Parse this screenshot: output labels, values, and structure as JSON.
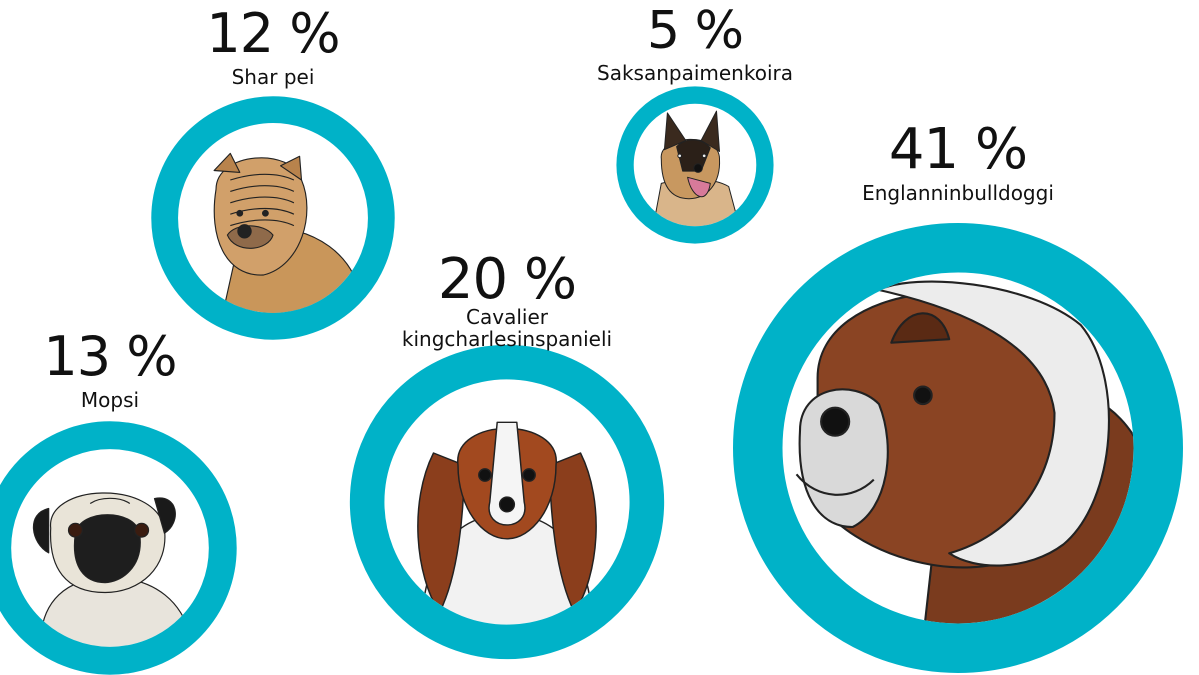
{
  "chart_data": {
    "type": "bubble",
    "unit": "%",
    "ring_color": "#00b2c8",
    "items": [
      {
        "value": 12,
        "label": "12 %",
        "name_lines": [
          "Shar pei"
        ],
        "breed": "shar-pei"
      },
      {
        "value": 5,
        "label": "5 %",
        "name_lines": [
          "Saksanpaimenkoira"
        ],
        "breed": "german-shepherd"
      },
      {
        "value": 41,
        "label": "41 %",
        "name_lines": [
          "Englanninbulldoggi"
        ],
        "breed": "english-bulldog"
      },
      {
        "value": 20,
        "label": "20 %",
        "name_lines": [
          "Cavalier",
          "kingcharlesinspanieli"
        ],
        "breed": "cavalier"
      },
      {
        "value": 13,
        "label": "13 %",
        "name_lines": [
          "Mopsi"
        ],
        "breed": "pug"
      }
    ]
  }
}
